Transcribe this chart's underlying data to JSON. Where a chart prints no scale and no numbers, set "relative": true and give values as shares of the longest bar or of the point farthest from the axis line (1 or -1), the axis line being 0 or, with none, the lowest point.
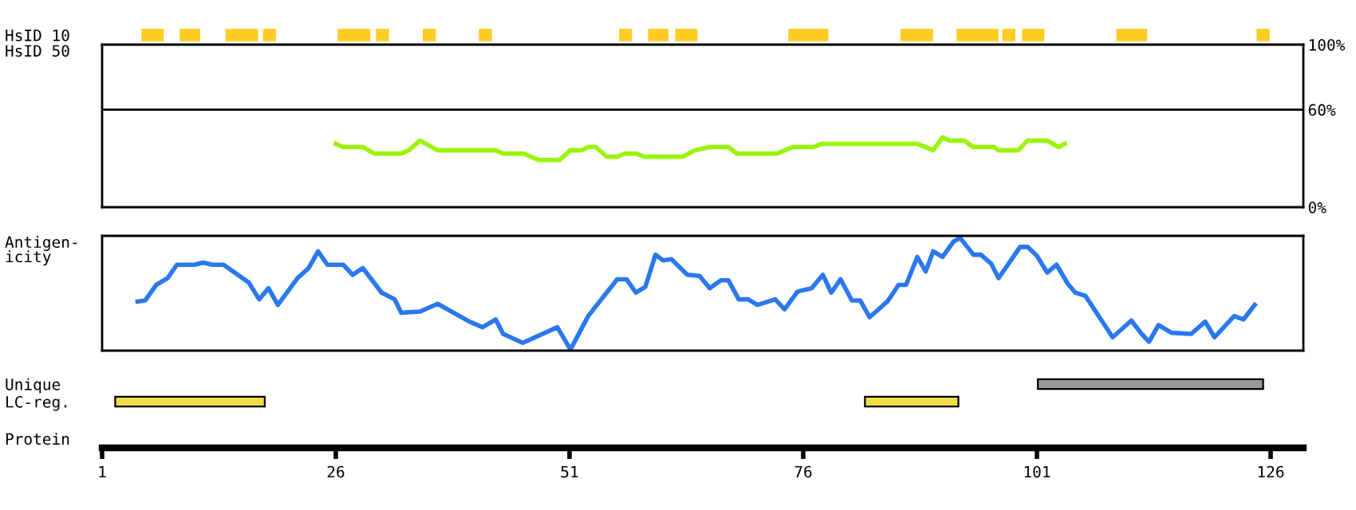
{
  "chart_data": [
    {
      "type": "bar",
      "orientation": "horizontal",
      "categories": [
        "HsID 10"
      ],
      "xlim": [
        1,
        129.5
      ],
      "tick_labels": "y",
      "series": [
        {
          "color": "#ffcc22",
          "base": [
            5.3
          ],
          "values": [
            2.2
          ]
        },
        {
          "color": "#ffcc22",
          "base": [
            9.4
          ],
          "values": [
            2.0
          ]
        },
        {
          "color": "#ffcc22",
          "base": [
            14.3
          ],
          "values": [
            3.3
          ]
        },
        {
          "color": "#ffcc22",
          "base": [
            18.3
          ],
          "values": [
            1.2
          ]
        },
        {
          "color": "#ffcc22",
          "base": [
            26.3
          ],
          "values": [
            3.3
          ]
        },
        {
          "color": "#ffcc22",
          "base": [
            30.4
          ],
          "values": [
            1.2
          ]
        },
        {
          "color": "#ffcc22",
          "base": [
            35.4
          ],
          "values": [
            1.2
          ]
        },
        {
          "color": "#ffcc22",
          "base": [
            41.4
          ],
          "values": [
            1.2
          ]
        },
        {
          "color": "#ffcc22",
          "base": [
            56.4
          ],
          "values": [
            1.2
          ]
        },
        {
          "color": "#ffcc22",
          "base": [
            59.5
          ],
          "values": [
            2.0
          ]
        },
        {
          "color": "#ffcc22",
          "base": [
            62.4
          ],
          "values": [
            2.2
          ]
        },
        {
          "color": "#ffcc22",
          "base": [
            74.5
          ],
          "values": [
            4.1
          ]
        },
        {
          "color": "#ffcc22",
          "base": [
            86.5
          ],
          "values": [
            3.3
          ]
        },
        {
          "color": "#ffcc22",
          "base": [
            92.5
          ],
          "values": [
            4.3
          ]
        },
        {
          "color": "#ffcc22",
          "base": [
            97.4
          ],
          "values": [
            1.2
          ]
        },
        {
          "color": "#ffcc22",
          "base": [
            99.5
          ],
          "values": [
            2.2
          ]
        },
        {
          "color": "#ffcc22",
          "base": [
            109.6
          ],
          "values": [
            3.1
          ]
        },
        {
          "color": "#ffcc22",
          "base": [
            124.6
          ],
          "values": [
            1.2
          ]
        }
      ]
    },
    {
      "type": "line",
      "ylabel": "HsID 50",
      "xlim": [
        1,
        129.5
      ],
      "ylim": [
        0,
        100
      ],
      "tick_labels": "y",
      "yticks": [
        {
          "value": 0,
          "label": "0%"
        },
        {
          "value": 60,
          "label": "60%"
        },
        {
          "value": 100,
          "label": "100%"
        }
      ],
      "ref_lines": [
        {
          "axis": "y",
          "value": 60,
          "color": "#000000"
        }
      ],
      "series": [
        {
          "color": "#99f500",
          "x": [
            26.0,
            26.8,
            28.9,
            30.1,
            33.0,
            33.8,
            35.0,
            36.9,
            43.1,
            43.9,
            46.1,
            47.7,
            49.9,
            51.1,
            52.3,
            53.0,
            53.8,
            55.0,
            56.1,
            56.9,
            58.1,
            59.0,
            63.1,
            64.4,
            66.0,
            68.0,
            68.9,
            73.2,
            74.9,
            77.1,
            78.0,
            88.2,
            89.9,
            90.9,
            91.6,
            93.2,
            94.2,
            96.4,
            96.9,
            99.0,
            100.0,
            102.1,
            103.3,
            104.0
          ],
          "values": [
            39,
            37,
            37,
            33,
            33,
            35,
            41,
            35,
            35,
            33,
            33,
            29,
            29,
            35,
            35,
            37,
            37,
            31,
            31,
            33,
            33,
            31,
            31,
            35,
            37,
            37,
            33,
            33,
            37,
            37,
            39,
            39,
            35,
            43,
            41,
            41,
            37,
            37,
            35,
            35,
            41,
            41,
            37,
            39
          ]
        }
      ]
    },
    {
      "type": "line",
      "ylabel": "Antigen-\nicity",
      "relative": true,
      "xlim": [
        1,
        129.5
      ],
      "tick_labels": false,
      "series": [
        {
          "color": "#2a78ee",
          "x": [
            4.8,
            5.6,
            6.8,
            8.0,
            9.0,
            10.9,
            11.8,
            12.8,
            14.0,
            16.7,
            17.8,
            18.8,
            19.8,
            21.9,
            23.1,
            24.1,
            25.1,
            26.8,
            27.8,
            28.9,
            30.9,
            32.3,
            33.0,
            35.0,
            36.9,
            40.3,
            41.7,
            43.1,
            43.9,
            46.0,
            49.7,
            51.1,
            53.0,
            56.1,
            57.1,
            58.1,
            59.1,
            60.2,
            61.0,
            61.9,
            63.6,
            64.9,
            66.0,
            67.2,
            68.0,
            69.1,
            70.1,
            71.1,
            73.0,
            74.0,
            75.4,
            76.9,
            78.1,
            79.0,
            80.0,
            81.2,
            82.1,
            83.1,
            85.0,
            86.2,
            87.0,
            88.2,
            89.1,
            89.9,
            90.9,
            92.1,
            92.8,
            94.2,
            95.0,
            96.1,
            96.9,
            99.2,
            100.0,
            101.0,
            102.1,
            103.1,
            104.3,
            105.1,
            106.2,
            109.1,
            111.1,
            112.2,
            113.0,
            114.0,
            115.4,
            117.5,
            119.0,
            120.0,
            122.1,
            123.1,
            124.3
          ],
          "values": [
            0.43,
            0.44,
            0.58,
            0.64,
            0.76,
            0.76,
            0.78,
            0.76,
            0.76,
            0.6,
            0.45,
            0.55,
            0.4,
            0.64,
            0.73,
            0.88,
            0.76,
            0.76,
            0.67,
            0.73,
            0.51,
            0.45,
            0.33,
            0.34,
            0.41,
            0.25,
            0.2,
            0.27,
            0.14,
            0.06,
            0.2,
            0.0,
            0.3,
            0.63,
            0.63,
            0.51,
            0.56,
            0.85,
            0.8,
            0.81,
            0.67,
            0.66,
            0.55,
            0.62,
            0.62,
            0.45,
            0.45,
            0.4,
            0.45,
            0.36,
            0.52,
            0.55,
            0.67,
            0.51,
            0.63,
            0.44,
            0.44,
            0.29,
            0.43,
            0.58,
            0.58,
            0.83,
            0.7,
            0.88,
            0.83,
            0.97,
            1.0,
            0.85,
            0.85,
            0.77,
            0.64,
            0.92,
            0.92,
            0.84,
            0.69,
            0.76,
            0.59,
            0.51,
            0.48,
            0.11,
            0.26,
            0.14,
            0.07,
            0.22,
            0.15,
            0.14,
            0.25,
            0.11,
            0.3,
            0.27,
            0.4
          ]
        }
      ]
    },
    {
      "type": "bar",
      "orientation": "horizontal",
      "categories": [
        "Unique",
        "LC-reg."
      ],
      "xlabel": "Protein",
      "xlim": [
        1,
        129.5
      ],
      "xticks": [
        1,
        26,
        51,
        76,
        101,
        126
      ],
      "series": [
        {
          "color": "#999999",
          "base": [
            101.1,
            null
          ],
          "values": [
            24.1,
            null
          ]
        },
        {
          "color": "#eedd44",
          "base": [
            null,
            2.4
          ],
          "values": [
            null,
            16.0
          ]
        },
        {
          "color": "#eedd44",
          "base": [
            null,
            82.6
          ],
          "values": [
            null,
            10.0
          ]
        }
      ]
    }
  ]
}
